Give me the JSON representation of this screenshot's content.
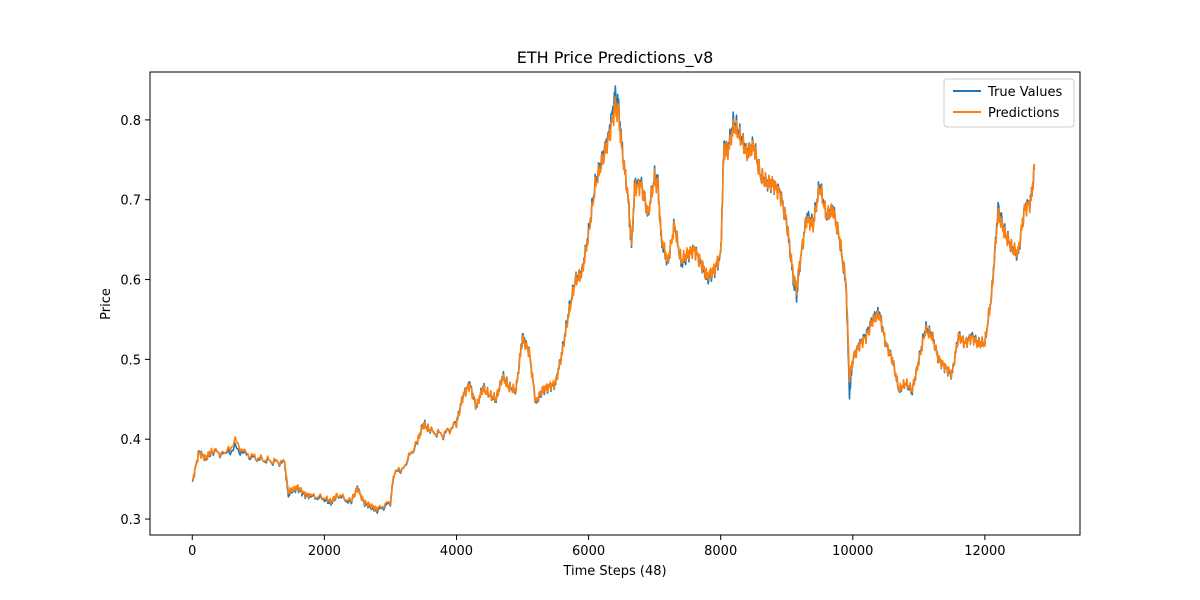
{
  "chart_data": {
    "type": "line",
    "title": "ETH Price Predictions_v8",
    "xlabel": "Time Steps (48)",
    "ylabel": "Price",
    "xlim": [
      -640,
      13440
    ],
    "ylim": [
      0.28,
      0.86
    ],
    "xticks": [
      0,
      2000,
      4000,
      6000,
      8000,
      10000,
      12000
    ],
    "yticks": [
      0.3,
      0.4,
      0.5,
      0.6,
      0.7,
      0.8
    ],
    "grid": false,
    "legend_position": "top-right",
    "colors": {
      "true_values": "#1f77b4",
      "predictions": "#ff7f0e"
    },
    "x": [
      0,
      100,
      200,
      300,
      500,
      650,
      800,
      1000,
      1200,
      1400,
      1450,
      1500,
      1600,
      1700,
      1800,
      2000,
      2100,
      2200,
      2400,
      2500,
      2600,
      2700,
      2800,
      3000,
      3050,
      3200,
      3400,
      3500,
      3600,
      3800,
      4000,
      4100,
      4200,
      4300,
      4400,
      4500,
      4600,
      4700,
      4800,
      4900,
      5000,
      5100,
      5200,
      5300,
      5400,
      5500,
      5600,
      5700,
      5800,
      5900,
      6000,
      6100,
      6200,
      6300,
      6400,
      6450,
      6500,
      6600,
      6650,
      6700,
      6800,
      6900,
      7000,
      7050,
      7100,
      7200,
      7300,
      7400,
      7500,
      7600,
      7700,
      7800,
      7900,
      8000,
      8050,
      8100,
      8200,
      8300,
      8400,
      8500,
      8600,
      8700,
      8800,
      8900,
      9000,
      9100,
      9150,
      9200,
      9300,
      9400,
      9500,
      9600,
      9700,
      9800,
      9900,
      9950,
      10000,
      10100,
      10200,
      10300,
      10400,
      10500,
      10600,
      10700,
      10800,
      10900,
      11000,
      11100,
      11200,
      11300,
      11400,
      11500,
      11600,
      11700,
      11800,
      11900,
      12000,
      12100,
      12200,
      12300,
      12400,
      12500,
      12600,
      12700,
      12750
    ],
    "series": [
      {
        "name": "True Values",
        "values": [
          0.345,
          0.385,
          0.375,
          0.385,
          0.38,
          0.39,
          0.38,
          0.375,
          0.372,
          0.37,
          0.33,
          0.335,
          0.338,
          0.33,
          0.328,
          0.325,
          0.32,
          0.33,
          0.32,
          0.34,
          0.32,
          0.315,
          0.31,
          0.32,
          0.355,
          0.365,
          0.395,
          0.42,
          0.41,
          0.405,
          0.42,
          0.455,
          0.47,
          0.44,
          0.465,
          0.455,
          0.45,
          0.48,
          0.465,
          0.46,
          0.53,
          0.51,
          0.445,
          0.46,
          0.465,
          0.47,
          0.51,
          0.56,
          0.6,
          0.61,
          0.66,
          0.72,
          0.75,
          0.78,
          0.83,
          0.82,
          0.77,
          0.7,
          0.64,
          0.72,
          0.72,
          0.68,
          0.73,
          0.72,
          0.65,
          0.62,
          0.67,
          0.62,
          0.63,
          0.64,
          0.62,
          0.6,
          0.61,
          0.63,
          0.77,
          0.76,
          0.8,
          0.78,
          0.76,
          0.77,
          0.73,
          0.72,
          0.72,
          0.71,
          0.67,
          0.6,
          0.58,
          0.62,
          0.68,
          0.67,
          0.72,
          0.68,
          0.69,
          0.65,
          0.59,
          0.455,
          0.5,
          0.52,
          0.53,
          0.55,
          0.56,
          0.52,
          0.5,
          0.46,
          0.47,
          0.46,
          0.5,
          0.54,
          0.53,
          0.5,
          0.49,
          0.48,
          0.53,
          0.52,
          0.53,
          0.52,
          0.52,
          0.58,
          0.69,
          0.66,
          0.64,
          0.63,
          0.69,
          0.7,
          0.74
        ]
      },
      {
        "name": "Predictions",
        "values": [
          0.347,
          0.383,
          0.376,
          0.386,
          0.381,
          0.398,
          0.382,
          0.376,
          0.373,
          0.371,
          0.335,
          0.336,
          0.34,
          0.332,
          0.329,
          0.327,
          0.322,
          0.331,
          0.322,
          0.338,
          0.322,
          0.317,
          0.312,
          0.322,
          0.356,
          0.366,
          0.396,
          0.418,
          0.41,
          0.406,
          0.419,
          0.454,
          0.468,
          0.442,
          0.463,
          0.455,
          0.451,
          0.478,
          0.464,
          0.461,
          0.526,
          0.51,
          0.447,
          0.461,
          0.466,
          0.471,
          0.508,
          0.556,
          0.598,
          0.608,
          0.656,
          0.716,
          0.746,
          0.775,
          0.815,
          0.81,
          0.766,
          0.702,
          0.645,
          0.716,
          0.718,
          0.682,
          0.726,
          0.716,
          0.653,
          0.623,
          0.668,
          0.623,
          0.632,
          0.638,
          0.622,
          0.603,
          0.612,
          0.632,
          0.764,
          0.758,
          0.792,
          0.776,
          0.758,
          0.768,
          0.73,
          0.72,
          0.72,
          0.708,
          0.672,
          0.605,
          0.588,
          0.622,
          0.676,
          0.668,
          0.716,
          0.68,
          0.688,
          0.652,
          0.595,
          0.475,
          0.5,
          0.518,
          0.528,
          0.548,
          0.556,
          0.52,
          0.5,
          0.462,
          0.47,
          0.462,
          0.498,
          0.536,
          0.528,
          0.5,
          0.491,
          0.482,
          0.528,
          0.52,
          0.528,
          0.52,
          0.52,
          0.578,
          0.684,
          0.658,
          0.64,
          0.632,
          0.688,
          0.698,
          0.745
        ]
      }
    ]
  }
}
